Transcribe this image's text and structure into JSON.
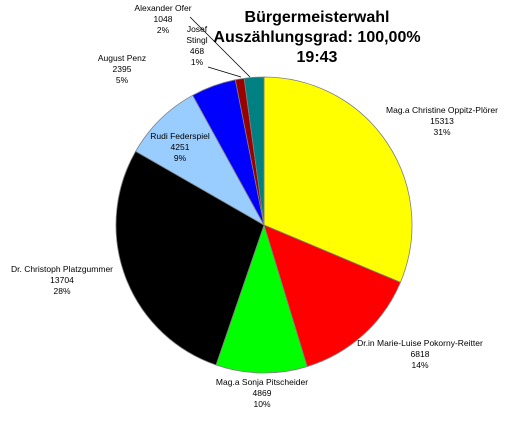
{
  "chart_data": {
    "type": "pie",
    "title_lines": [
      "Bürgermeisterwahl",
      "Auszählungsgrad: 100,00%",
      "19:43"
    ],
    "slices": [
      {
        "name": "Mag.a Christine Oppitz-Plörer",
        "value": 15313,
        "percent": "31%",
        "color": "#ffff00"
      },
      {
        "name": "Dr.in Marie-Luise Pokorny-Reitter",
        "value": 6818,
        "percent": "14%",
        "color": "#ff0000"
      },
      {
        "name": "Mag.a Sonja Pitscheider",
        "value": 4869,
        "percent": "10%",
        "color": "#00ff00"
      },
      {
        "name": "Dr. Christoph Platzgummer",
        "value": 13704,
        "percent": "28%",
        "color": "#000000"
      },
      {
        "name": "Rudi Federspiel",
        "value": 4251,
        "percent": "9%",
        "color": "#99ccff"
      },
      {
        "name": "August Penz",
        "value": 2395,
        "percent": "5%",
        "color": "#0000ff"
      },
      {
        "name": "Josef Stingl",
        "value": 468,
        "percent": "1%",
        "color": "#990000"
      },
      {
        "name": "Alexander Ofer",
        "value": 1048,
        "percent": "2%",
        "color": "#008080"
      }
    ]
  }
}
